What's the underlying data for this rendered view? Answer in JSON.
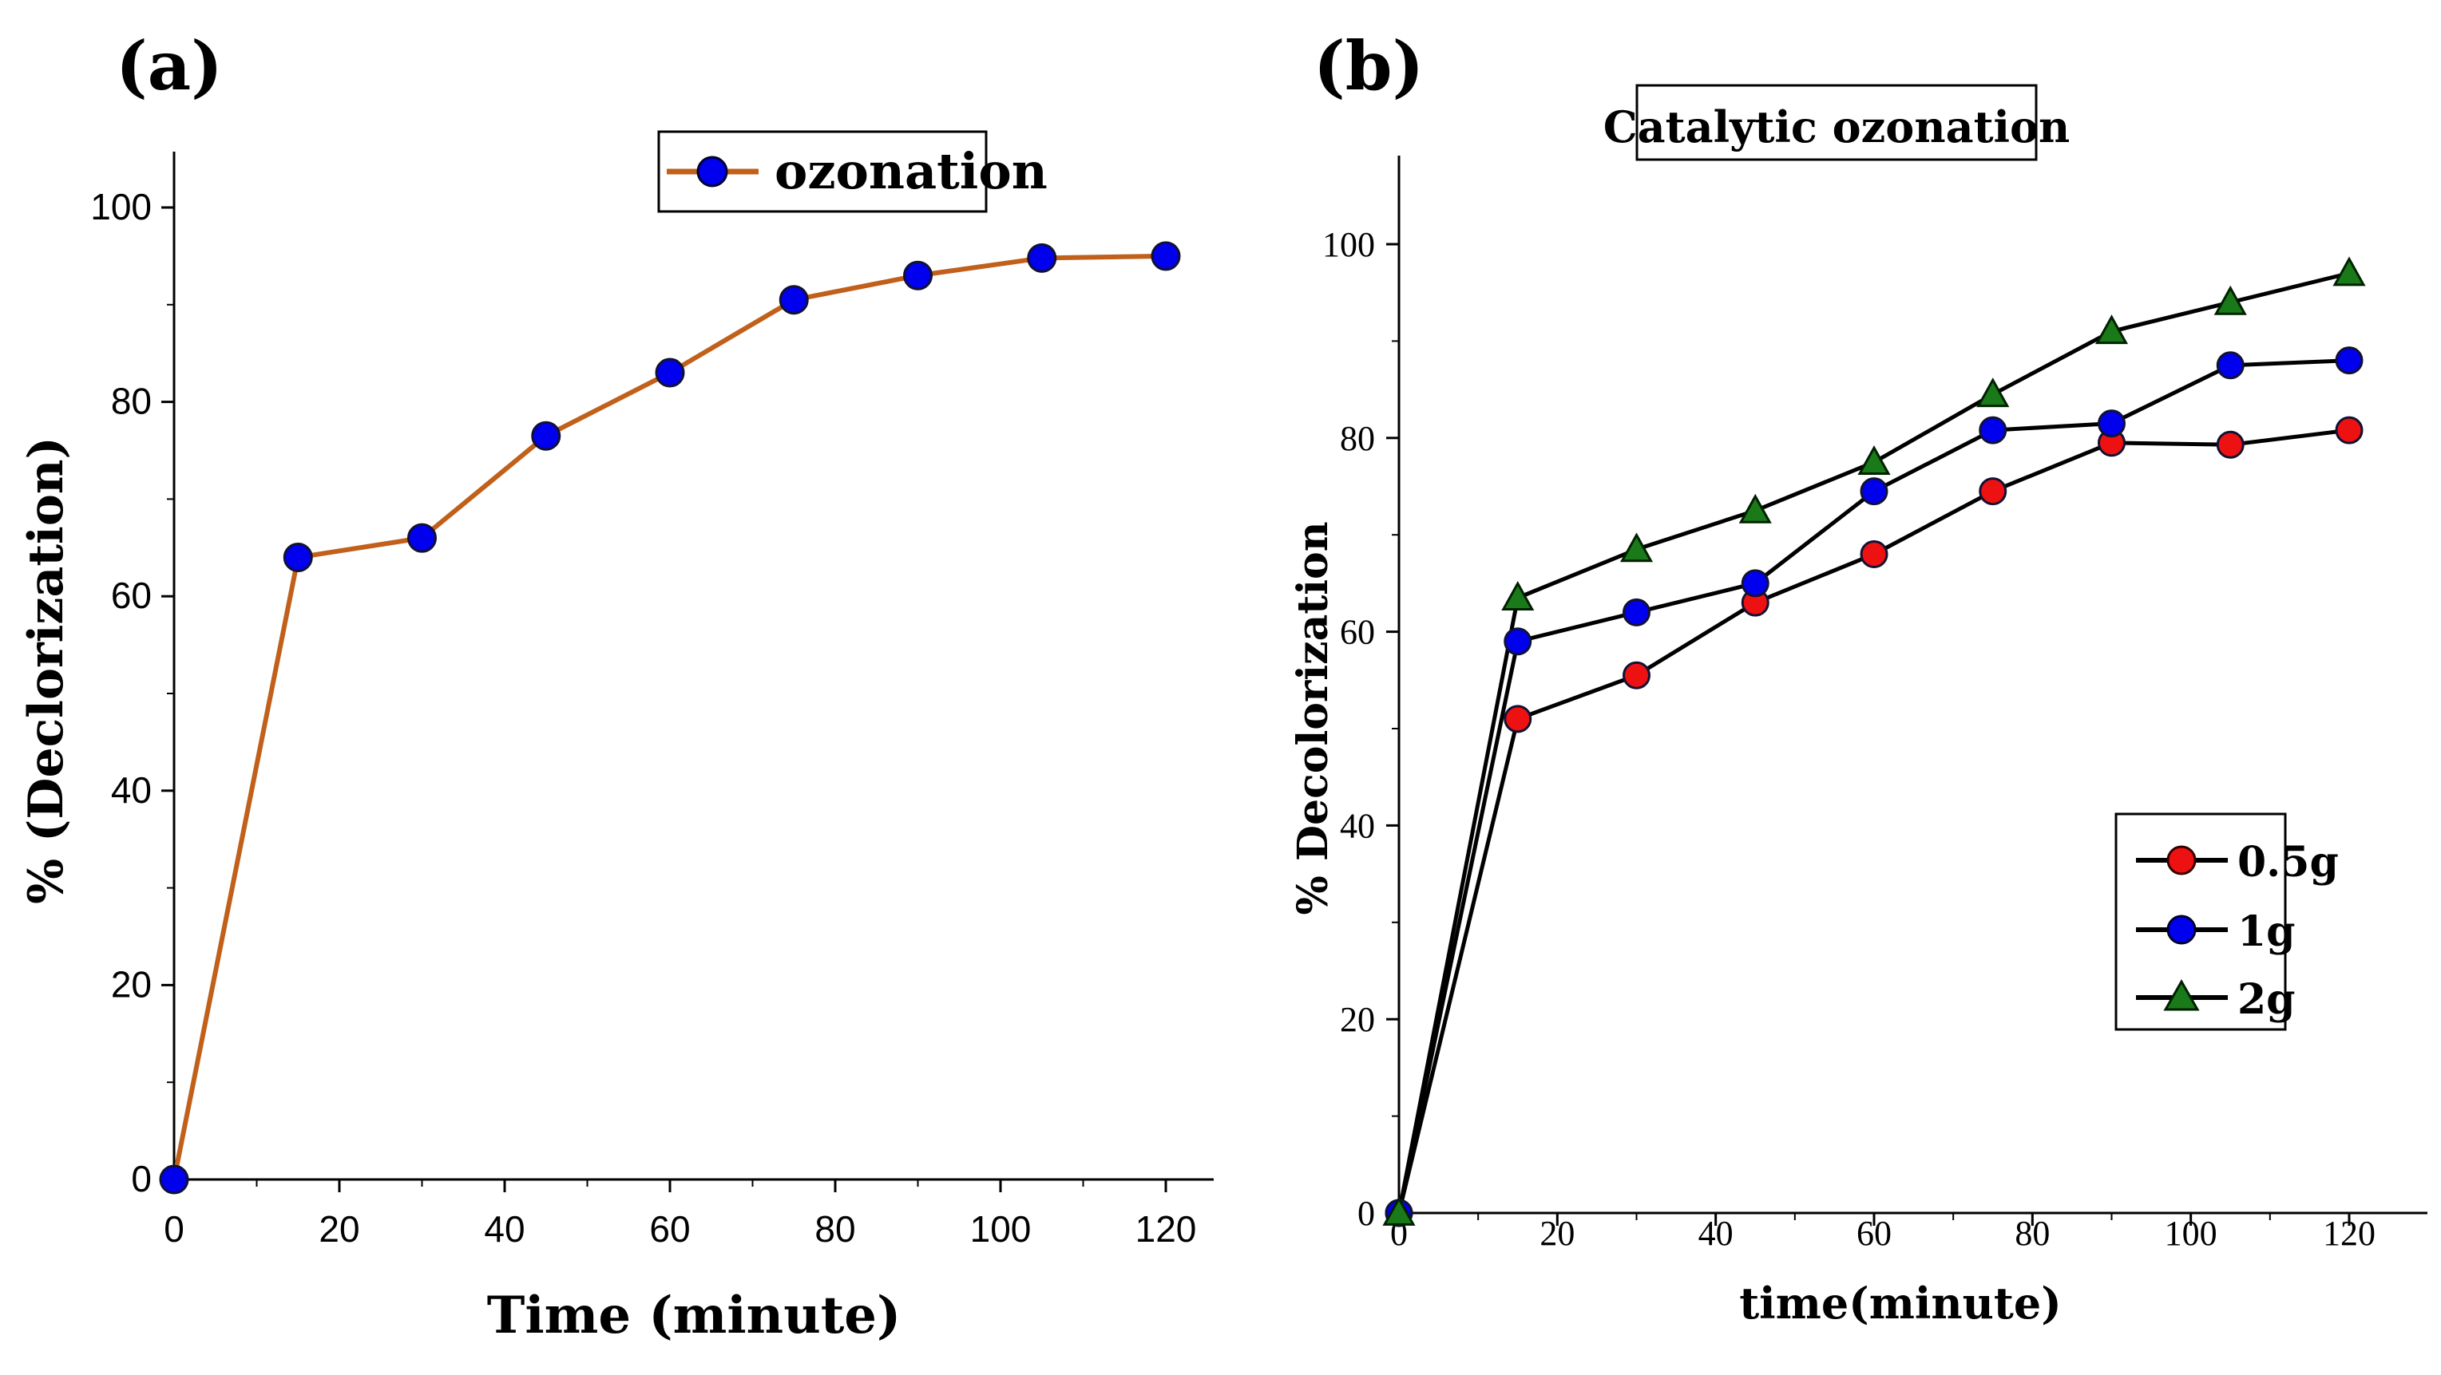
{
  "chart_data": [
    {
      "panel": "(a)",
      "type": "line",
      "title": "",
      "xlabel": "Time (minute)",
      "ylabel": "% (Declorization)",
      "xlim": [
        0,
        125
      ],
      "ylim": [
        0,
        110
      ],
      "xticks": [
        0,
        20,
        40,
        60,
        80,
        100,
        120
      ],
      "yticks": [
        0,
        20,
        40,
        60,
        80,
        100
      ],
      "legend_position": "top-right",
      "series": [
        {
          "name": "ozonation",
          "line_color": "#c0601a",
          "marker_color": "#0000ee",
          "marker": "circle",
          "x": [
            0,
            15,
            30,
            45,
            60,
            75,
            90,
            105,
            120
          ],
          "values": [
            0,
            64,
            66,
            76.5,
            83,
            90.5,
            93,
            94.8,
            95
          ]
        }
      ]
    },
    {
      "panel": "(b)",
      "type": "line",
      "title": "Catalytic ozonation",
      "xlabel": "time(minute)",
      "ylabel": "% Decolorization",
      "xlim": [
        0,
        130
      ],
      "ylim": [
        0,
        110
      ],
      "xticks": [
        0,
        20,
        40,
        60,
        80,
        100,
        120
      ],
      "yticks": [
        0,
        20,
        40,
        60,
        80,
        100
      ],
      "legend_position": "lower-right",
      "series": [
        {
          "name": "0.5g",
          "line_color": "#000000",
          "marker_color": "#ee1111",
          "marker": "circle",
          "x": [
            0,
            15,
            30,
            45,
            60,
            75,
            90,
            105,
            120
          ],
          "values": [
            0,
            51,
            55.5,
            63,
            68,
            74.5,
            79.5,
            79.3,
            80.8
          ]
        },
        {
          "name": "1g",
          "line_color": "#000000",
          "marker_color": "#0000ee",
          "marker": "circle",
          "x": [
            0,
            15,
            30,
            45,
            60,
            75,
            90,
            105,
            120
          ],
          "values": [
            0,
            59,
            62,
            65,
            74.5,
            80.8,
            81.5,
            87.5,
            88
          ]
        },
        {
          "name": "2g",
          "line_color": "#000000",
          "marker_color": "#1a7a1a",
          "marker": "triangle",
          "x": [
            0,
            15,
            30,
            45,
            60,
            75,
            90,
            105,
            120
          ],
          "values": [
            0,
            63.5,
            68.5,
            72.5,
            77.5,
            84.5,
            91,
            94,
            97
          ]
        }
      ]
    }
  ]
}
